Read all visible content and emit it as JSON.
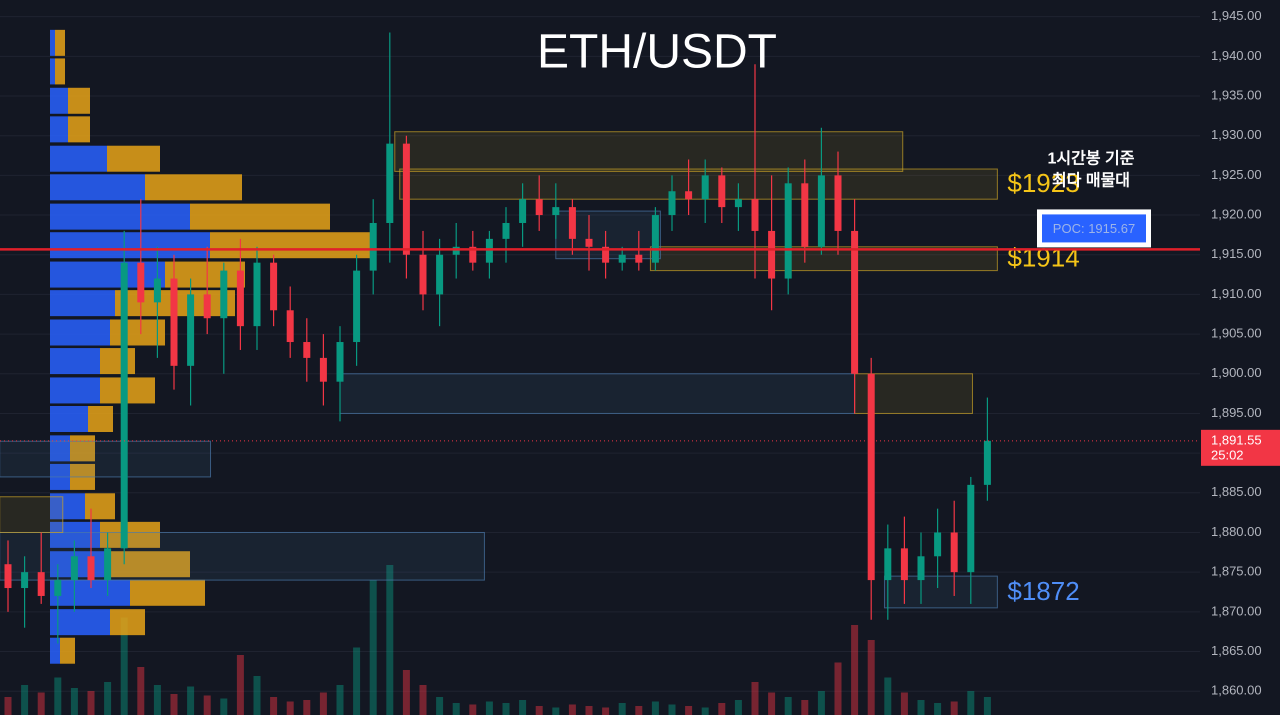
{
  "chart_data": {
    "type": "candlestick",
    "title": "ETH/USDT",
    "ylim": [
      1857,
      1947.1
    ],
    "yticks": [
      {
        "value": 1860,
        "label": "1,860.00"
      },
      {
        "value": 1865,
        "label": "1,865.00"
      },
      {
        "value": 1870,
        "label": "1,870.00"
      },
      {
        "value": 1875,
        "label": "1,875.00"
      },
      {
        "value": 1880,
        "label": "1,880.00"
      },
      {
        "value": 1885,
        "label": "1,885.00"
      },
      {
        "value": 1890,
        "label": "1,890.00"
      },
      {
        "value": 1895,
        "label": "1,895.00"
      },
      {
        "value": 1900,
        "label": "1,900.00"
      },
      {
        "value": 1905,
        "label": "1,905.00"
      },
      {
        "value": 1910,
        "label": "1,910.00"
      },
      {
        "value": 1915,
        "label": "1,915.00"
      },
      {
        "value": 1920,
        "label": "1,920.00"
      },
      {
        "value": 1925,
        "label": "1,925.00"
      },
      {
        "value": 1930,
        "label": "1,930.00"
      },
      {
        "value": 1935,
        "label": "1,935.00"
      },
      {
        "value": 1940,
        "label": "1,940.00"
      },
      {
        "value": 1945,
        "label": "1,945.00"
      }
    ],
    "grid": true,
    "colors": {
      "up": "#089981",
      "down": "#f23645"
    },
    "candles": {
      "open": [
        1876,
        1873,
        1875,
        1872,
        1874,
        1877,
        1874,
        1878,
        1914,
        1909,
        1912,
        1901,
        1910,
        1907,
        1913,
        1906,
        1914,
        1908,
        1904,
        1902,
        1899,
        1904,
        1913,
        1919,
        1929,
        1915,
        1910,
        1915,
        1916,
        1914,
        1917,
        1919,
        1922,
        1920,
        1921,
        1917,
        1916,
        1914,
        1915,
        1914,
        1920,
        1923,
        1922,
        1925,
        1921,
        1922,
        1918,
        1912,
        1924,
        1916,
        1925,
        1918,
        1900,
        1874,
        1878,
        1874,
        1877,
        1880,
        1875,
        1886
      ],
      "high": [
        1879,
        1877,
        1880,
        1876,
        1879,
        1883,
        1880,
        1918,
        1922,
        1916,
        1915,
        1912,
        1916,
        1914,
        1917,
        1916,
        1915,
        1911,
        1907,
        1905,
        1906,
        1915,
        1922,
        1943,
        1930,
        1918,
        1917,
        1919,
        1918,
        1918,
        1921,
        1924,
        1925,
        1924,
        1922,
        1920,
        1918,
        1916,
        1918,
        1921,
        1925,
        1927,
        1927,
        1926,
        1924,
        1939,
        1925,
        1926,
        1927,
        1931,
        1928,
        1922,
        1902,
        1881,
        1882,
        1880,
        1883,
        1884,
        1887,
        1897
      ],
      "low": [
        1870,
        1868,
        1871,
        1866,
        1870,
        1873,
        1872,
        1876,
        1905,
        1902,
        1898,
        1896,
        1905,
        1900,
        1903,
        1903,
        1906,
        1902,
        1899,
        1896,
        1894,
        1901,
        1910,
        1914,
        1912,
        1908,
        1906,
        1912,
        1913,
        1912,
        1914,
        1916,
        1918,
        1917,
        1915,
        1913,
        1912,
        1913,
        1913,
        1913,
        1918,
        1920,
        1919,
        1919,
        1918,
        1912,
        1908,
        1910,
        1914,
        1915,
        1915,
        1895,
        1869,
        1869,
        1871,
        1871,
        1873,
        1872,
        1871,
        1884
      ],
      "close": [
        1873,
        1875,
        1872,
        1874,
        1877,
        1874,
        1878,
        1914,
        1909,
        1912,
        1901,
        1910,
        1907,
        1913,
        1906,
        1914,
        1908,
        1904,
        1902,
        1899,
        1904,
        1913,
        1919,
        1929,
        1915,
        1910,
        1915,
        1916,
        1914,
        1917,
        1919,
        1922,
        1920,
        1921,
        1917,
        1916,
        1914,
        1915,
        1914,
        1920,
        1923,
        1922,
        1925,
        1921,
        1922,
        1918,
        1912,
        1924,
        1916,
        1925,
        1918,
        1900,
        1874,
        1878,
        1874,
        1877,
        1880,
        1875,
        1886,
        1891.55
      ]
    },
    "volume": [
      1.2,
      2.0,
      1.5,
      2.5,
      1.8,
      1.6,
      2.2,
      6.5,
      3.2,
      2.0,
      1.4,
      1.9,
      1.3,
      1.1,
      4.0,
      2.6,
      1.2,
      0.9,
      1.0,
      1.5,
      2.0,
      4.5,
      9.0,
      10.0,
      3.0,
      2.0,
      1.2,
      0.8,
      0.7,
      0.9,
      0.8,
      1.0,
      0.6,
      0.5,
      0.7,
      0.6,
      0.5,
      0.8,
      0.6,
      0.9,
      0.7,
      0.6,
      0.5,
      0.8,
      1.0,
      2.2,
      1.5,
      1.2,
      1.0,
      1.6,
      3.5,
      6.0,
      5.0,
      2.5,
      1.5,
      1.0,
      0.8,
      0.9,
      1.6,
      1.2
    ],
    "volume_profile": {
      "prices": [
        1941.7,
        1938.1,
        1934.4,
        1930.8,
        1927.1,
        1923.5,
        1919.8,
        1916.2,
        1912.5,
        1908.9,
        1905.2,
        1901.6,
        1897.9,
        1894.3,
        1890.6,
        1887.0,
        1883.3,
        1879.7,
        1876.0,
        1872.4,
        1868.7,
        1865.1
      ],
      "buy": [
        5,
        5,
        18,
        18,
        57,
        95,
        140,
        160,
        115,
        65,
        60,
        50,
        50,
        38,
        20,
        20,
        35,
        50,
        60,
        80,
        60,
        10
      ],
      "sell": [
        10,
        10,
        22,
        22,
        53,
        97,
        140,
        160,
        80,
        120,
        55,
        35,
        55,
        25,
        25,
        25,
        30,
        60,
        80,
        75,
        35,
        15
      ],
      "colors": {
        "buy": "#2962ff",
        "sell": "#e8a317"
      }
    },
    "zones": [
      {
        "low": 1925.5,
        "high": 1930.5,
        "start": 23.3,
        "end": 53.9,
        "color": "#c9a227"
      },
      {
        "low": 1922,
        "high": 1925.8,
        "start": 23.6,
        "end": 59.6,
        "color": "#c9a227",
        "label": "$1923"
      },
      {
        "low": 1913,
        "high": 1916,
        "start": 38.7,
        "end": 59.6,
        "color": "#c9a227",
        "label": "$1914"
      },
      {
        "low": 1914.5,
        "high": 1920.5,
        "start": 33,
        "end": 39.3,
        "color": "#4a78a8"
      },
      {
        "low": 1895,
        "high": 1900,
        "start": 20,
        "end": 51,
        "color": "#4a78a8"
      },
      {
        "low": 1895,
        "high": 1900,
        "start": 51,
        "end": 58.1,
        "color": "#c9a227"
      },
      {
        "low": 1870.5,
        "high": 1874.5,
        "start": 52.8,
        "end": 59.6,
        "color": "#4a78a8",
        "label": "$1872"
      },
      {
        "low": 1874,
        "high": 1880,
        "start": -0.5,
        "end": 28.7,
        "color": "#4a78a8"
      },
      {
        "low": 1887,
        "high": 1891.5,
        "start": -0.5,
        "end": 12.2,
        "color": "#4a78a8"
      },
      {
        "low": 1880,
        "high": 1884.5,
        "start": -0.5,
        "end": 3.3,
        "color": "#c9a227"
      }
    ],
    "poc": {
      "value": 1915.67,
      "label": "POC: 1915.67",
      "note": [
        "1시간봉 기준",
        "최다 매물대"
      ],
      "color": "#e0202a"
    },
    "last_price": {
      "value": 1891.55,
      "label": "1,891.55",
      "countdown": "25:02"
    }
  }
}
